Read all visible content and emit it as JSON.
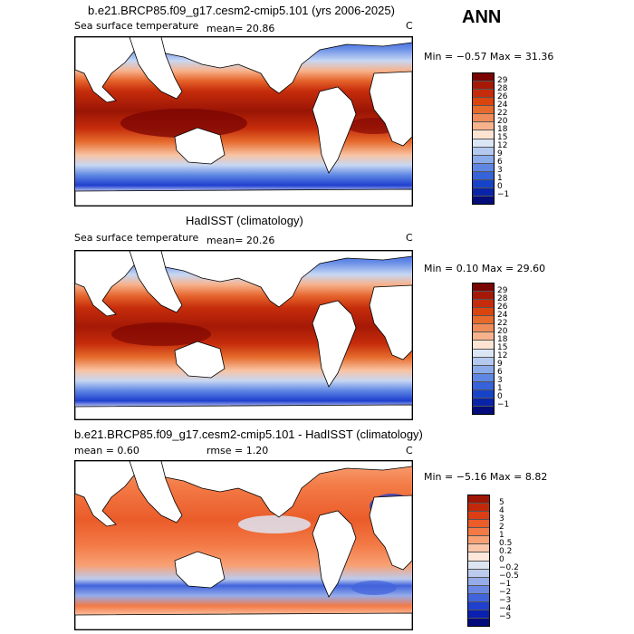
{
  "season": "ANN",
  "chart_data": [
    {
      "type": "heatmap",
      "title": "b.e21.BRCP85.f09_g17.cesm2-cmip5.101 (yrs 2006-2025)",
      "variable": "Sea surface temperature",
      "mean_label": "mean=  20.86",
      "units": "C",
      "min_max": "Min =  −0.57 Max =  31.36",
      "levels": [
        "29",
        "28",
        "26",
        "24",
        "22",
        "20",
        "18",
        "15",
        "12",
        "9",
        "6",
        "3",
        "1",
        "0",
        "−1"
      ],
      "colors": [
        "#7a0403",
        "#a51906",
        "#c52c0b",
        "#d9440f",
        "#e66a2c",
        "#f08c59",
        "#f7b28c",
        "#fce3d2",
        "#dbe6f5",
        "#b4c9ef",
        "#8aabea",
        "#5e86e3",
        "#3663da",
        "#1743c9",
        "#0924a8",
        "#030c7a"
      ]
    },
    {
      "type": "heatmap",
      "title": "HadISST (climatology)",
      "variable": "Sea surface temperature",
      "mean_label": "mean=  20.26",
      "units": "C",
      "min_max": "Min =   0.10 Max =  29.60",
      "levels": [
        "29",
        "28",
        "26",
        "24",
        "22",
        "20",
        "18",
        "15",
        "12",
        "9",
        "6",
        "3",
        "1",
        "0",
        "−1"
      ],
      "colors": [
        "#7a0403",
        "#a51906",
        "#c52c0b",
        "#d9440f",
        "#e66a2c",
        "#f08c59",
        "#f7b28c",
        "#fce3d2",
        "#dbe6f5",
        "#b4c9ef",
        "#8aabea",
        "#5e86e3",
        "#3663da",
        "#1743c9",
        "#0924a8",
        "#030c7a"
      ]
    },
    {
      "type": "heatmap",
      "title": "b.e21.BRCP85.f09_g17.cesm2-cmip5.101 - HadISST (climatology)",
      "mean_label": "mean =   0.60",
      "rmse_label": "rmse =   1.20",
      "units": "C",
      "min_max": "Min =  −5.16 Max =   8.82",
      "levels": [
        "5",
        "4",
        "3",
        "2",
        "1",
        "0.5",
        "0.2",
        "0",
        "−0.2",
        "−0.5",
        "−1",
        "−2",
        "−3",
        "−4",
        "−5"
      ],
      "colors": [
        "#a01604",
        "#c3280a",
        "#dc3e16",
        "#ea5c2a",
        "#f37a46",
        "#f8a175",
        "#fbc6a8",
        "#fde7da",
        "#dde5f3",
        "#bccbee",
        "#96ace9",
        "#6a88e3",
        "#4163dc",
        "#1f3fce",
        "#0a20b0",
        "#020a7c"
      ]
    }
  ]
}
